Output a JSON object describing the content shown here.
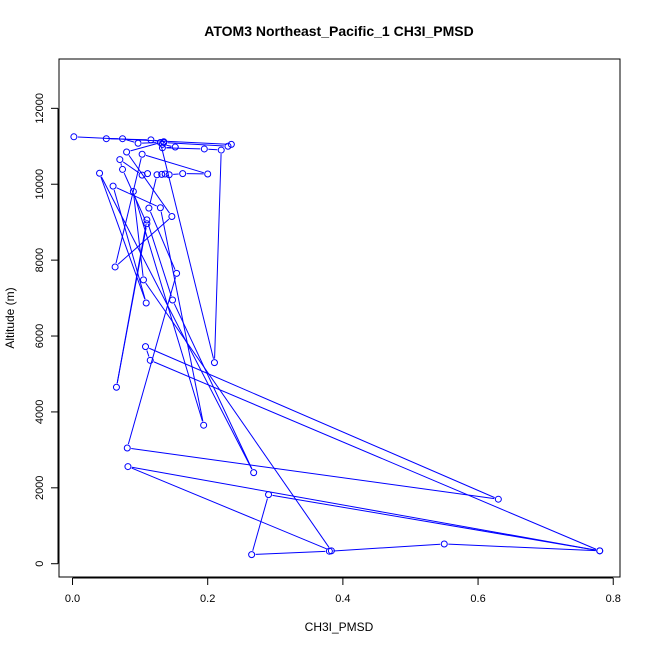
{
  "chart_data": {
    "type": "line",
    "title": "ATOM3 Northeast_Pacific_1 CH3I_PMSD",
    "xlabel": "CH3I_PMSD",
    "ylabel": "Altitude (m)",
    "xlim": [
      -0.02,
      0.81
    ],
    "ylim": [
      -350,
      13300
    ],
    "xticks": [
      0.0,
      0.2,
      0.4,
      0.6,
      0.8
    ],
    "xtick_labels": [
      "0.0",
      "0.2",
      "0.4",
      "0.6",
      "0.8"
    ],
    "yticks": [
      0,
      2000,
      4000,
      6000,
      8000,
      10000,
      12000
    ],
    "ytick_labels": [
      "0",
      "2000",
      "4000",
      "6000",
      "8000",
      "10000",
      "12000"
    ],
    "grid": false,
    "legend": "none",
    "marker": "open-circle",
    "color": "#0000ff",
    "series": [
      {
        "points": [
          {
            "x": 0.002,
            "y": 11250
          },
          {
            "x": 0.235,
            "y": 11050
          },
          {
            "x": 0.23,
            "y": 11000
          },
          {
            "x": 0.135,
            "y": 11100
          },
          {
            "x": 0.133,
            "y": 11050
          },
          {
            "x": 0.152,
            "y": 10980
          },
          {
            "x": 0.133,
            "y": 10960
          },
          {
            "x": 0.195,
            "y": 10930
          },
          {
            "x": 0.22,
            "y": 10900
          },
          {
            "x": 0.21,
            "y": 5300
          },
          {
            "x": 0.13,
            "y": 11100
          },
          {
            "x": 0.097,
            "y": 11080
          },
          {
            "x": 0.074,
            "y": 11200
          },
          {
            "x": 0.05,
            "y": 11200
          },
          {
            "x": 0.116,
            "y": 11170
          },
          {
            "x": 0.135,
            "y": 11120
          },
          {
            "x": 0.08,
            "y": 10850
          },
          {
            "x": 0.147,
            "y": 9150
          },
          {
            "x": 0.063,
            "y": 7820
          },
          {
            "x": 0.103,
            "y": 10790
          },
          {
            "x": 0.2,
            "y": 10270
          },
          {
            "x": 0.163,
            "y": 10280
          },
          {
            "x": 0.143,
            "y": 10250
          },
          {
            "x": 0.137,
            "y": 10270
          },
          {
            "x": 0.132,
            "y": 10260
          },
          {
            "x": 0.125,
            "y": 10250
          },
          {
            "x": 0.113,
            "y": 9370
          },
          {
            "x": 0.154,
            "y": 7650
          },
          {
            "x": 0.081,
            "y": 3050
          },
          {
            "x": 0.63,
            "y": 1700
          },
          {
            "x": 0.108,
            "y": 5720
          },
          {
            "x": 0.115,
            "y": 5360
          },
          {
            "x": 0.78,
            "y": 340
          },
          {
            "x": 0.55,
            "y": 520
          },
          {
            "x": 0.38,
            "y": 330
          },
          {
            "x": 0.265,
            "y": 240
          },
          {
            "x": 0.29,
            "y": 1820
          },
          {
            "x": 0.78,
            "y": 340
          },
          {
            "x": 0.082,
            "y": 2560
          },
          {
            "x": 0.383,
            "y": 340
          },
          {
            "x": 0.105,
            "y": 7480
          },
          {
            "x": 0.09,
            "y": 9810
          },
          {
            "x": 0.194,
            "y": 3650
          },
          {
            "x": 0.13,
            "y": 9380
          },
          {
            "x": 0.06,
            "y": 9950
          },
          {
            "x": 0.109,
            "y": 6870
          },
          {
            "x": 0.04,
            "y": 10290
          },
          {
            "x": 0.268,
            "y": 2400
          },
          {
            "x": 0.148,
            "y": 6950
          },
          {
            "x": 0.11,
            "y": 9060
          },
          {
            "x": 0.065,
            "y": 4650
          },
          {
            "x": 0.11,
            "y": 8960
          },
          {
            "x": 0.074,
            "y": 10390
          },
          {
            "x": 0.07,
            "y": 10650
          },
          {
            "x": 0.103,
            "y": 10240
          },
          {
            "x": 0.111,
            "y": 10280
          }
        ]
      }
    ]
  }
}
